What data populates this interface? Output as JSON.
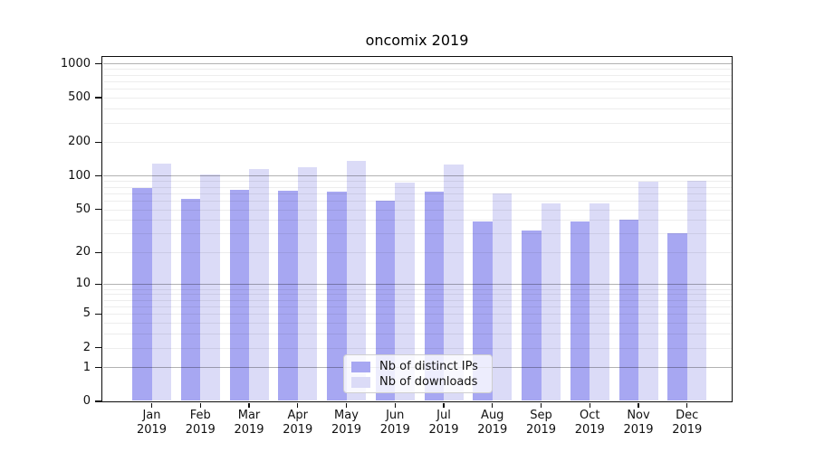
{
  "title": "oncomix 2019",
  "chart_data": {
    "type": "bar",
    "title": "oncomix 2019",
    "categories": [
      "Jan 2019",
      "Feb 2019",
      "Mar 2019",
      "Apr 2019",
      "May 2019",
      "Jun 2019",
      "Jul 2019",
      "Aug 2019",
      "Sep 2019",
      "Oct 2019",
      "Nov 2019",
      "Dec 2019"
    ],
    "series": [
      {
        "name": "Nb of distinct IPs",
        "color": "#a7a7f2",
        "values": [
          78,
          62,
          75,
          74,
          72,
          60,
          72,
          39,
          32,
          39,
          40,
          30
        ]
      },
      {
        "name": "Nb of downloads",
        "color": "#dbdbf7",
        "values": [
          130,
          103,
          116,
          119,
          137,
          87,
          127,
          70,
          57,
          57,
          89,
          91
        ]
      }
    ],
    "xlabel": "",
    "ylabel": "",
    "yscale": "log1p",
    "yticks": [
      0,
      1,
      2,
      5,
      10,
      20,
      50,
      100,
      200,
      500,
      1000
    ],
    "ylim": [
      0,
      1163
    ],
    "grid": {
      "major": [
        1,
        10,
        100,
        1000
      ],
      "minor_decades": [
        1,
        10,
        100
      ]
    },
    "legend_position": "lower center",
    "colors": {
      "background": "#ffffff",
      "frame": "#0c0c0c",
      "text": "#111111",
      "major_grid": "rgba(0,0,0,0.30)",
      "minor_grid": "rgba(0,0,0,0.07)",
      "legend_border": "#cfcfcf",
      "legend_bg": "rgba(255,255,255,0.8)"
    }
  }
}
